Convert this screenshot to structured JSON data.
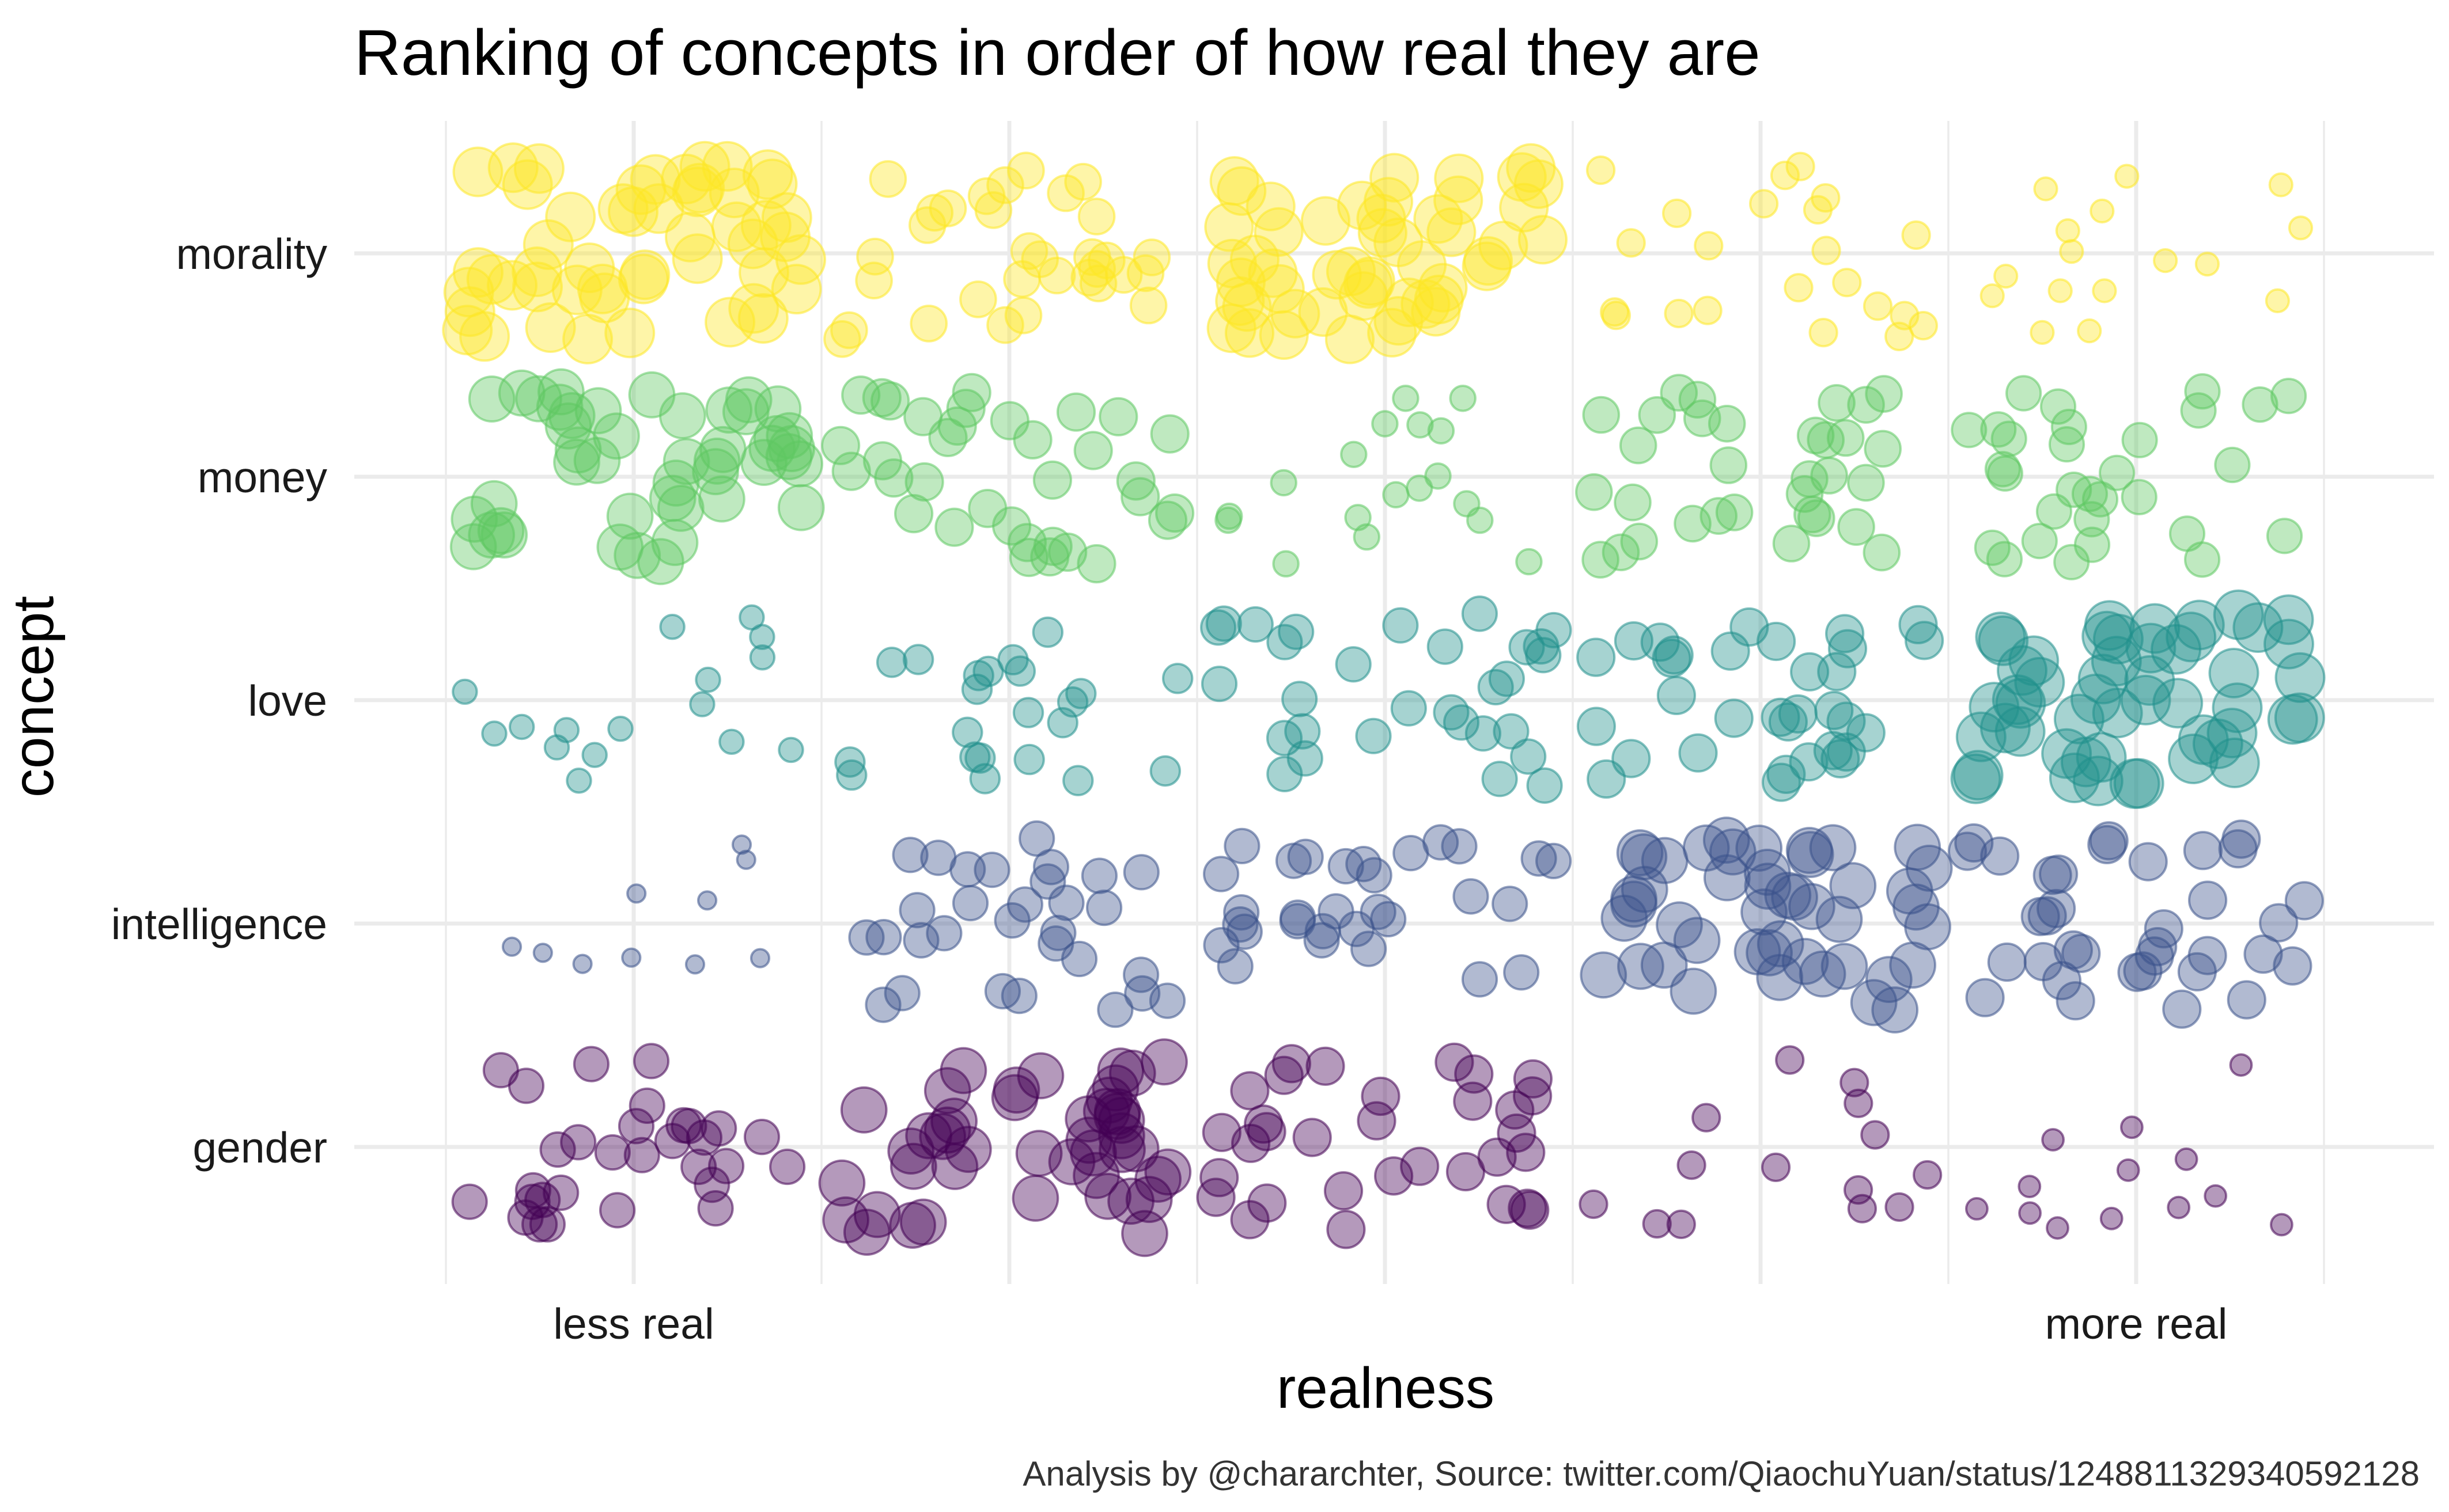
{
  "chart_data": {
    "type": "scatter",
    "subtype": "jittered bubble strip plot",
    "title": "Ranking of concepts in order of how real they are",
    "xlabel": "realness",
    "ylabel": "concept",
    "caption": "Analysis by @chararchter, Source: twitter.com/QiaochuYuan/status/1248811329340592128",
    "x_ticks": [
      1,
      2,
      3,
      4,
      5
    ],
    "x_tick_labels": {
      "1": "less real",
      "5": "more real"
    },
    "categories": [
      "gender",
      "intelligence",
      "love",
      "money",
      "morality"
    ],
    "grid": "on",
    "legend": "none",
    "point_opacity": 0.4,
    "colors": {
      "gender": "#440154",
      "intelligence": "#3b528b",
      "love": "#21908c",
      "money": "#5ec962",
      "morality": "#fde725"
    },
    "counts": {
      "gender": [
        18,
        35,
        22,
        10,
        5
      ],
      "intelligence": [
        3,
        18,
        18,
        35,
        22
      ],
      "love": [
        7,
        12,
        18,
        22,
        42
      ],
      "money": [
        35,
        22,
        8,
        20,
        18
      ],
      "morality": [
        42,
        20,
        40,
        10,
        6
      ]
    },
    "series": [
      {
        "name": "gender",
        "x": [
          1,
          2,
          3,
          4,
          5
        ],
        "n_points": [
          30,
          45,
          32,
          14,
          13
        ]
      },
      {
        "name": "intelligence",
        "x": [
          1,
          2,
          3,
          4,
          5
        ],
        "n_points": [
          10,
          30,
          30,
          45,
          35
        ]
      },
      {
        "name": "love",
        "x": [
          1,
          2,
          3,
          4,
          5
        ],
        "n_points": [
          16,
          22,
          30,
          32,
          50
        ]
      },
      {
        "name": "money",
        "x": [
          1,
          2,
          3,
          4,
          5
        ],
        "n_points": [
          45,
          34,
          18,
          32,
          30
        ]
      },
      {
        "name": "morality",
        "x": [
          1,
          2,
          3,
          4,
          5
        ],
        "n_points": [
          50,
          32,
          50,
          22,
          16
        ]
      }
    ]
  }
}
